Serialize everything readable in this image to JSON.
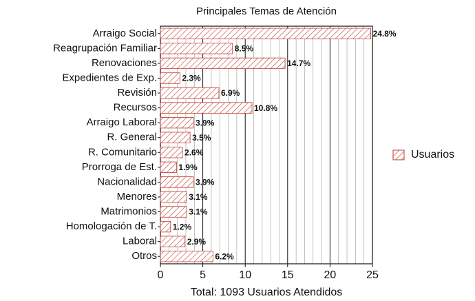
{
  "chart_data": {
    "type": "bar",
    "orientation": "horizontal",
    "title": "Principales Temas de Atención",
    "x_label": "Total: 1093 Usuarios Atendidos",
    "categories": [
      "Arraigo Social",
      "Reagrupación Familiar",
      "Renovaciones",
      "Expedientes de Exp.",
      "Revisión",
      "Recursos",
      "Arraigo Laboral",
      "R. General",
      "R. Comunitario",
      "Prorroga de Est.",
      "Nacionalidad",
      "Menores",
      "Matrimonios",
      "Homologación de T.",
      "Laboral",
      "Otros"
    ],
    "series": [
      {
        "name": "Usuarios",
        "color": "#c0392b",
        "values": [
          24.8,
          8.5,
          14.7,
          2.3,
          6.9,
          10.8,
          3.9,
          3.5,
          2.6,
          1.9,
          3.9,
          3.1,
          3.1,
          1.2,
          2.9,
          6.2
        ],
        "value_labels": [
          "24.8%",
          "8.5%",
          "14.7%",
          "2.3%",
          "6.9%",
          "10.8%",
          "3.9%",
          "3.5%",
          "2.6%",
          "1.9%",
          "3.9%",
          "3.1%",
          "3.1%",
          "1.2%",
          "2.9%",
          "6.2%"
        ]
      }
    ],
    "xlim": [
      0,
      25
    ],
    "xticks": [
      0,
      5,
      10,
      15,
      20,
      25
    ],
    "xminor": [
      1,
      2,
      3,
      4,
      6,
      7,
      8,
      9,
      11,
      12,
      13,
      14,
      16,
      17,
      18,
      19,
      21,
      22,
      23,
      24
    ],
    "grid": true,
    "legend": "right"
  }
}
